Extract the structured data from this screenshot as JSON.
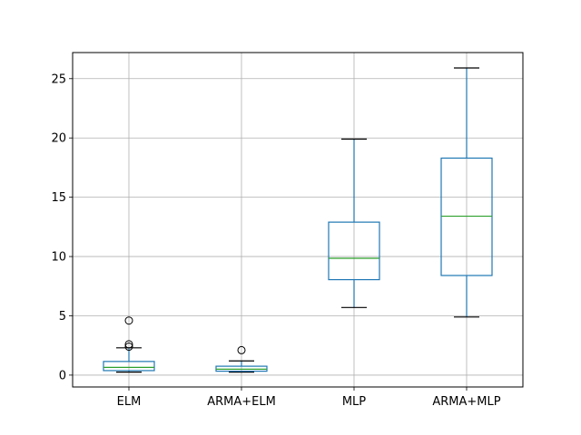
{
  "chart_data": {
    "type": "box",
    "title": "",
    "xlabel": "",
    "ylabel": "",
    "categories": [
      "ELM",
      "ARMA+ELM",
      "MLP",
      "ARMA+MLP"
    ],
    "ylim": [
      -1.0,
      27.2
    ],
    "yticks": [
      0,
      5,
      10,
      15,
      20,
      25
    ],
    "ytick_labels": [
      "0",
      "5",
      "10",
      "15",
      "20",
      "25"
    ],
    "grid": true,
    "box_color": "#1f77b4",
    "median_color": "#2ca02c",
    "boxes": [
      {
        "name": "ELM",
        "whisker_low": 0.25,
        "q1": 0.38,
        "median": 0.65,
        "q3": 1.15,
        "whisker_high": 2.3,
        "outliers": [
          2.4,
          2.6,
          4.6
        ]
      },
      {
        "name": "ARMA+ELM",
        "whisker_low": 0.25,
        "q1": 0.33,
        "median": 0.5,
        "q3": 0.75,
        "whisker_high": 1.2,
        "outliers": [
          2.1
        ]
      },
      {
        "name": "MLP",
        "whisker_low": 5.7,
        "q1": 8.05,
        "median": 9.85,
        "q3": 12.9,
        "whisker_high": 19.9,
        "outliers": []
      },
      {
        "name": "ARMA+MLP",
        "whisker_low": 4.9,
        "q1": 8.4,
        "median": 13.4,
        "q3": 18.3,
        "whisker_high": 25.9,
        "outliers": []
      }
    ]
  }
}
